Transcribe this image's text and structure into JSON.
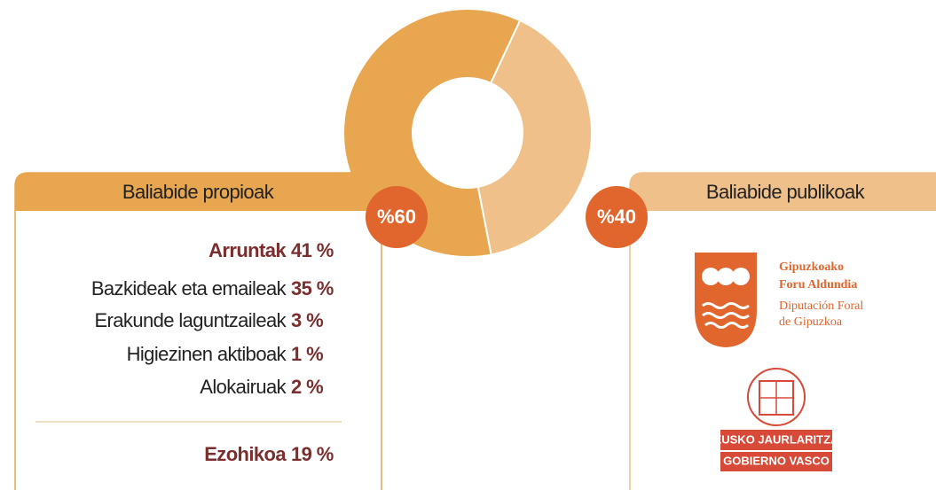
{
  "chart_data": {
    "type": "pie",
    "categories": [
      "Baliabide propioak",
      "Baliabide publikoak"
    ],
    "values": [
      60,
      40
    ],
    "value_labels": [
      "%60",
      "%40"
    ],
    "colors": [
      "#e8a650",
      "#efc08a"
    ],
    "donut": true
  },
  "left_panel": {
    "items": [
      {
        "name": "Arruntak",
        "label": "41 %",
        "bold": true
      },
      {
        "name": "Bazkideak eta emaileak",
        "label": "35 %",
        "bold": false
      },
      {
        "name": "Erakunde laguntzaileak",
        "label": "3 %",
        "bold": false
      },
      {
        "name": "Higiezinen aktiboak",
        "label": "1 %",
        "bold": false
      },
      {
        "name": "Alokairuak",
        "label": "2 %",
        "bold": false
      },
      {
        "name": "Ezohikoa",
        "label": "19 %",
        "bold": true
      }
    ]
  },
  "right_panel": {
    "logos": [
      {
        "lines": [
          "Gipuzkoako",
          "Foru Aldundia",
          "Diputación Foral",
          "de Gipuzkoa"
        ]
      },
      {
        "lines": [
          "EUSKO JAURLARITZA",
          "GOBIERNO VASCO"
        ]
      }
    ]
  }
}
